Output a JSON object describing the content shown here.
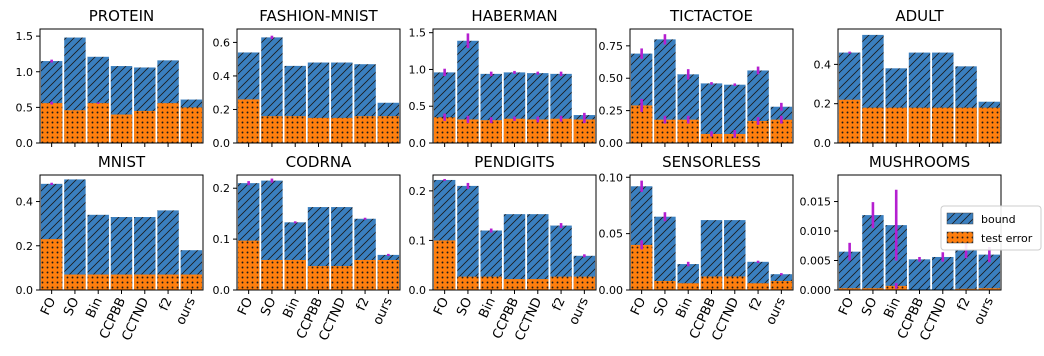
{
  "figure": {
    "legend": {
      "bound": "bound",
      "test_error": "test error",
      "location": "upper right of MUSHROOMS panel"
    },
    "colors": {
      "bound": "#3a7fbf",
      "test_error": "#ff7f0e",
      "error_bar": "#b51fd0",
      "hatch": "#1a1a1a"
    }
  },
  "chart_data": [
    {
      "type": "bar",
      "title": "PROTEIN",
      "categories": [
        "FO",
        "SO",
        "Bin",
        "CCPBB",
        "CCTND",
        "f2",
        "ours"
      ],
      "series": [
        {
          "name": "bound",
          "values": [
            1.15,
            1.48,
            1.21,
            1.08,
            1.06,
            1.16,
            0.61
          ]
        },
        {
          "name": "test error",
          "values": [
            0.56,
            0.46,
            0.56,
            0.4,
            0.45,
            0.56,
            0.5
          ]
        }
      ],
      "error_bars": {
        "bound": [
          0.02,
          0,
          0,
          0,
          0,
          0,
          0
        ],
        "test error": [
          0.02,
          0,
          0.01,
          0,
          0,
          0,
          0
        ]
      },
      "ylim": [
        0,
        1.6
      ],
      "yticks": [
        "0.0",
        "0.5",
        "1.0",
        "1.5"
      ],
      "show_xticklabels": false
    },
    {
      "type": "bar",
      "title": "FASHION-MNIST",
      "categories": [
        "FO",
        "SO",
        "Bin",
        "CCPBB",
        "CCTND",
        "f2",
        "ours"
      ],
      "series": [
        {
          "name": "bound",
          "values": [
            0.54,
            0.63,
            0.46,
            0.48,
            0.48,
            0.47,
            0.24
          ]
        },
        {
          "name": "test error",
          "values": [
            0.26,
            0.16,
            0.16,
            0.15,
            0.15,
            0.16,
            0.16
          ]
        }
      ],
      "error_bars": {
        "bound": [
          0,
          0.01,
          0,
          0,
          0,
          0,
          0
        ],
        "test error": [
          0,
          0,
          0,
          0,
          0,
          0,
          0
        ]
      },
      "ylim": [
        0,
        0.68
      ],
      "yticks": [
        "0.0",
        "0.2",
        "0.4",
        "0.6"
      ],
      "show_xticklabels": false
    },
    {
      "type": "bar",
      "title": "HABERMAN",
      "categories": [
        "FO",
        "SO",
        "Bin",
        "CCPBB",
        "CCTND",
        "f2",
        "ours"
      ],
      "series": [
        {
          "name": "bound",
          "values": [
            0.96,
            1.39,
            0.94,
            0.96,
            0.95,
            0.94,
            0.38
          ]
        },
        {
          "name": "test error",
          "values": [
            0.35,
            0.32,
            0.31,
            0.33,
            0.32,
            0.33,
            0.32
          ]
        }
      ],
      "error_bars": {
        "bound": [
          0.05,
          0.1,
          0.03,
          0.02,
          0.02,
          0.03,
          0.03
        ],
        "test error": [
          0.05,
          0.05,
          0.04,
          0.03,
          0.04,
          0.04,
          0.05
        ]
      },
      "ylim": [
        0,
        1.55
      ],
      "yticks": [
        "0.0",
        "0.5",
        "1.0",
        "1.5"
      ],
      "show_xticklabels": false
    },
    {
      "type": "bar",
      "title": "TICTACTOE",
      "categories": [
        "FO",
        "SO",
        "Bin",
        "CCPBB",
        "CCTND",
        "f2",
        "ours"
      ],
      "series": [
        {
          "name": "bound",
          "values": [
            0.69,
            0.8,
            0.53,
            0.46,
            0.45,
            0.56,
            0.28
          ]
        },
        {
          "name": "test error",
          "values": [
            0.29,
            0.18,
            0.18,
            0.07,
            0.07,
            0.17,
            0.18
          ]
        }
      ],
      "error_bars": {
        "bound": [
          0.04,
          0.04,
          0.04,
          0.01,
          0.01,
          0.03,
          0.03
        ],
        "test error": [
          0.05,
          0.03,
          0.03,
          0.02,
          0.03,
          0.03,
          0.03
        ]
      },
      "ylim": [
        0,
        0.88
      ],
      "yticks": [
        "0.00",
        "0.25",
        "0.50",
        "0.75"
      ],
      "show_xticklabels": false
    },
    {
      "type": "bar",
      "title": "ADULT",
      "categories": [
        "FO",
        "SO",
        "Bin",
        "CCPBB",
        "CCTND",
        "f2",
        "ours"
      ],
      "series": [
        {
          "name": "bound",
          "values": [
            0.46,
            0.55,
            0.38,
            0.46,
            0.46,
            0.39,
            0.21
          ]
        },
        {
          "name": "test error",
          "values": [
            0.22,
            0.18,
            0.18,
            0.18,
            0.18,
            0.18,
            0.18
          ]
        }
      ],
      "error_bars": {
        "bound": [
          0.005,
          0,
          0,
          0,
          0,
          0,
          0
        ],
        "test error": [
          0,
          0,
          0,
          0,
          0,
          0,
          0
        ]
      },
      "ylim": [
        0,
        0.58
      ],
      "yticks": [
        "0.0",
        "0.2",
        "0.4"
      ],
      "show_xticklabels": false
    },
    {
      "type": "bar",
      "title": "MNIST",
      "categories": [
        "FO",
        "SO",
        "Bin",
        "CCPBB",
        "CCTND",
        "f2",
        "ours"
      ],
      "series": [
        {
          "name": "bound",
          "values": [
            0.48,
            0.5,
            0.34,
            0.33,
            0.33,
            0.36,
            0.18
          ]
        },
        {
          "name": "test error",
          "values": [
            0.23,
            0.07,
            0.07,
            0.07,
            0.07,
            0.07,
            0.07
          ]
        }
      ],
      "error_bars": {
        "bound": [
          0.005,
          0,
          0,
          0,
          0,
          0,
          0
        ],
        "test error": [
          0,
          0,
          0,
          0,
          0,
          0,
          0
        ]
      },
      "ylim": [
        0,
        0.52
      ],
      "yticks": [
        "0.0",
        "0.2",
        "0.4"
      ],
      "show_xticklabels": true
    },
    {
      "type": "bar",
      "title": "CODRNA",
      "categories": [
        "FO",
        "SO",
        "Bin",
        "CCPBB",
        "CCTND",
        "f2",
        "ours"
      ],
      "series": [
        {
          "name": "bound",
          "values": [
            0.21,
            0.215,
            0.133,
            0.163,
            0.163,
            0.14,
            0.069
          ]
        },
        {
          "name": "test error",
          "values": [
            0.097,
            0.059,
            0.059,
            0.047,
            0.047,
            0.059,
            0.059
          ]
        }
      ],
      "error_bars": {
        "bound": [
          0.004,
          0.004,
          0.002,
          0,
          0,
          0.002,
          0.002
        ],
        "test error": [
          0,
          0,
          0,
          0,
          0,
          0,
          0
        ]
      },
      "ylim": [
        0,
        0.226
      ],
      "yticks": [
        "0.0",
        "0.1",
        "0.2"
      ],
      "show_xticklabels": true
    },
    {
      "type": "bar",
      "title": "PENDIGITS",
      "categories": [
        "FO",
        "SO",
        "Bin",
        "CCPBB",
        "CCTND",
        "f2",
        "ours"
      ],
      "series": [
        {
          "name": "bound",
          "values": [
            0.222,
            0.21,
            0.12,
            0.153,
            0.153,
            0.13,
            0.069
          ]
        },
        {
          "name": "test error",
          "values": [
            0.1,
            0.027,
            0.027,
            0.022,
            0.022,
            0.027,
            0.027
          ]
        }
      ],
      "error_bars": {
        "bound": [
          0.002,
          0.006,
          0.004,
          0,
          0,
          0.005,
          0.003
        ],
        "test error": [
          0,
          0,
          0,
          0,
          0,
          0,
          0
        ]
      },
      "ylim": [
        0,
        0.232
      ],
      "yticks": [
        "0.0",
        "0.1",
        "0.2"
      ],
      "show_xticklabels": true
    },
    {
      "type": "bar",
      "title": "SENSORLESS",
      "categories": [
        "FO",
        "SO",
        "Bin",
        "CCPBB",
        "CCTND",
        "f2",
        "ours"
      ],
      "series": [
        {
          "name": "bound",
          "values": [
            0.092,
            0.065,
            0.023,
            0.062,
            0.062,
            0.025,
            0.014
          ]
        },
        {
          "name": "test error",
          "values": [
            0.04,
            0.008,
            0.006,
            0.012,
            0.012,
            0.006,
            0.008
          ]
        }
      ],
      "error_bars": {
        "bound": [
          0.005,
          0.004,
          0.002,
          0,
          0,
          0.001,
          0.001
        ],
        "test error": [
          0.004,
          0,
          0,
          0,
          0,
          0,
          0
        ]
      },
      "ylim": [
        0,
        0.102
      ],
      "yticks": [
        "0.00",
        "0.05",
        "0.10"
      ],
      "show_xticklabels": true
    },
    {
      "type": "bar",
      "title": "MUSHROOMS",
      "categories": [
        "FO",
        "SO",
        "Bin",
        "CCPBB",
        "CCTND",
        "f2",
        "ours"
      ],
      "series": [
        {
          "name": "bound",
          "values": [
            0.0065,
            0.0127,
            0.011,
            0.0052,
            0.0056,
            0.0068,
            0.006
          ]
        },
        {
          "name": "test error",
          "values": [
            0.0003,
            0.0003,
            0.0007,
            0,
            0,
            0.0002,
            0.0003
          ]
        }
      ],
      "error_bars": {
        "bound": [
          0.0015,
          0.0022,
          0.006,
          0.0004,
          0.0008,
          0.0014,
          0.0013
        ],
        "test error": [
          0,
          0,
          0.0005,
          0,
          0,
          0,
          0
        ]
      },
      "ylim": [
        0,
        0.0195
      ],
      "yticks": [
        "0.000",
        "0.005",
        "0.010",
        "0.015"
      ],
      "show_xticklabels": true,
      "legend": true
    }
  ]
}
